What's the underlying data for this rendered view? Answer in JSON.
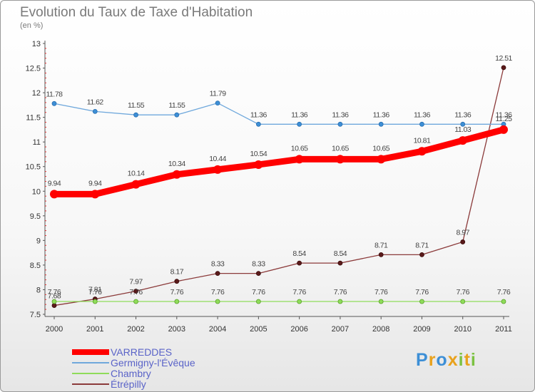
{
  "chart_data": {
    "type": "line",
    "title": "Evolution du Taux de Taxe d'Habitation",
    "subtitle": "(en %)",
    "x": [
      "2000",
      "2001",
      "2002",
      "2003",
      "2004",
      "2005",
      "2006",
      "2007",
      "2008",
      "2009",
      "2010",
      "2011"
    ],
    "ylim": [
      7.5,
      13
    ],
    "yticks": [
      "7.5",
      "8",
      "8.5",
      "9",
      "9.5",
      "10",
      "10.5",
      "11",
      "11.5",
      "12",
      "12.5",
      "13"
    ],
    "grid": false,
    "legend_position": "bottom-left",
    "series": [
      {
        "name": "VARREDDES",
        "color": "#ff0000",
        "values": [
          9.94,
          9.94,
          10.14,
          10.34,
          10.44,
          10.54,
          10.65,
          10.65,
          10.65,
          10.81,
          11.03,
          11.25
        ],
        "labels": [
          "9.94",
          "9.94",
          "10.14",
          "10.34",
          "10.44",
          "10.54",
          "10.65",
          "10.65",
          "10.65",
          "10.81",
          "11.03",
          "11.25"
        ]
      },
      {
        "name": "Germigny-l'Évêque",
        "color": "#6fa8dc",
        "values": [
          11.78,
          11.62,
          11.55,
          11.55,
          11.79,
          11.36,
          11.36,
          11.36,
          11.36,
          11.36,
          11.36,
          11.36
        ],
        "labels": [
          "11.78",
          "11.62",
          "11.55",
          "11.55",
          "11.79",
          "11.36",
          "11.36",
          "11.36",
          "11.36",
          "11.36",
          "11.36",
          "11.36"
        ]
      },
      {
        "name": "Chambry",
        "color": "#8fdc5a",
        "values": [
          7.76,
          7.76,
          7.76,
          7.76,
          7.76,
          7.76,
          7.76,
          7.76,
          7.76,
          7.76,
          7.76,
          7.76
        ],
        "labels": [
          "7.76",
          "7.76",
          "7.76",
          "7.76",
          "7.76",
          "7.76",
          "7.76",
          "7.76",
          "7.76",
          "7.76",
          "7.76",
          "7.76"
        ]
      },
      {
        "name": "Étrépilly",
        "color": "#8b3a3a",
        "values": [
          7.68,
          7.81,
          7.97,
          8.17,
          8.33,
          8.33,
          8.54,
          8.54,
          8.71,
          8.71,
          8.97,
          12.51
        ],
        "labels": [
          "7.68",
          "7.81",
          "7.97",
          "8.17",
          "8.33",
          "8.33",
          "8.54",
          "8.54",
          "8.71",
          "8.71",
          "8.97",
          "12.51"
        ]
      }
    ]
  },
  "logo": {
    "letters": [
      {
        "char": "P",
        "color": "#3d8fd6"
      },
      {
        "char": "r",
        "color": "#e9a21d"
      },
      {
        "char": "o",
        "color": "#3d8fd6"
      },
      {
        "char": "x",
        "color": "#e9a21d"
      },
      {
        "char": "i",
        "color": "#7cc242"
      },
      {
        "char": "t",
        "color": "#e9a21d"
      },
      {
        "char": "i",
        "color": "#7cc242"
      }
    ]
  }
}
